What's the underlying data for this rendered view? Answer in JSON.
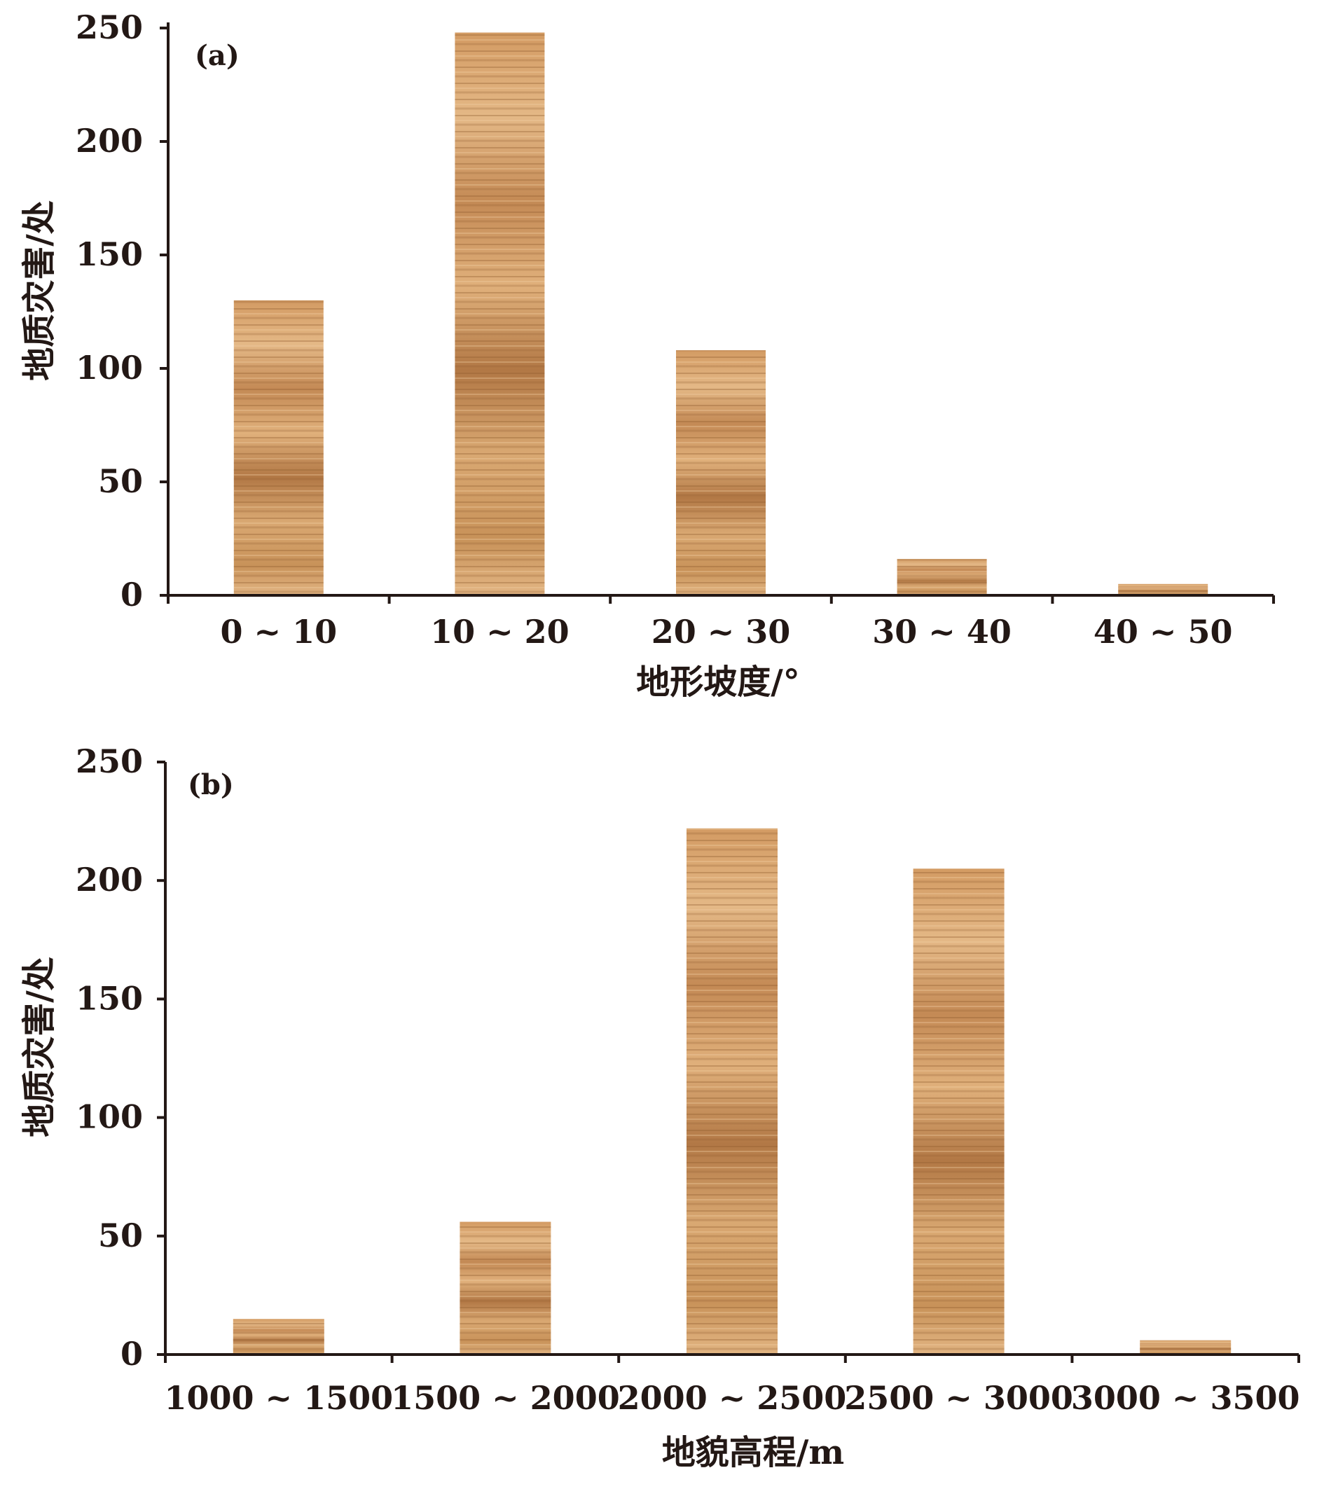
{
  "colors": {
    "bar_light": "#e2b583",
    "bar_mid": "#c98f58",
    "bar_dark": "#9a6437",
    "axis": "#231815"
  },
  "chart_data": [
    {
      "type": "bar",
      "panel_label": "(a)",
      "categories": [
        "0 ~ 10",
        "10 ~ 20",
        "20 ~ 30",
        "30 ~ 40",
        "40 ~ 50"
      ],
      "values": [
        130,
        248,
        108,
        16,
        5
      ],
      "xlabel": "地形坡度/°",
      "ylabel": "地质灾害/处",
      "ylim": [
        0,
        250
      ],
      "yticks": [
        0,
        50,
        100,
        150,
        200,
        250
      ],
      "grid": false,
      "legend": "none"
    },
    {
      "type": "bar",
      "panel_label": "(b)",
      "categories": [
        "1000 ~ 1500",
        "1500 ~ 2000",
        "2000 ~ 2500",
        "2500 ~ 3000",
        "3000 ~ 3500"
      ],
      "values": [
        15,
        56,
        222,
        205,
        6
      ],
      "xlabel": "地貌高程/m",
      "ylabel": "地质灾害/处",
      "ylim": [
        0,
        250
      ],
      "yticks": [
        0,
        50,
        100,
        150,
        200,
        250
      ],
      "grid": false,
      "legend": "none"
    }
  ]
}
